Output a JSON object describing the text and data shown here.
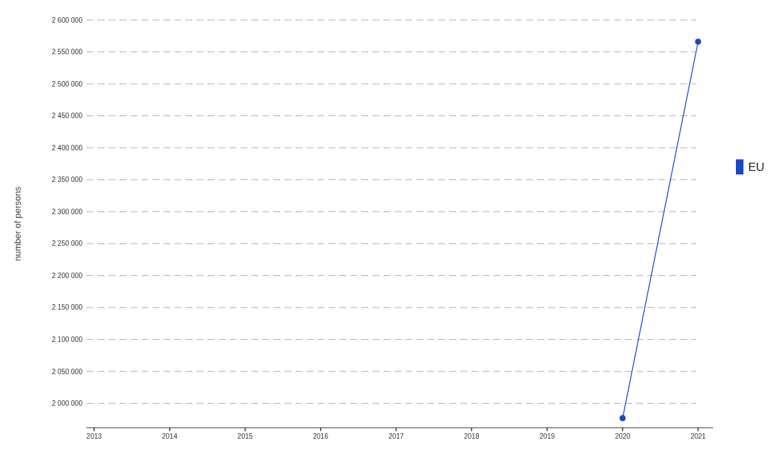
{
  "chart_data": {
    "type": "line",
    "ylabel": "number of persons",
    "x": [
      2020,
      2021
    ],
    "series": [
      {
        "name": "EU",
        "color": "#1a47c8",
        "values": [
          1977000,
          2566000
        ]
      }
    ],
    "xlim": [
      2012.9,
      2021.2
    ],
    "xticks": [
      2013,
      2014,
      2015,
      2016,
      2017,
      2018,
      2019,
      2020,
      2021
    ],
    "ylim": [
      1962000,
      2600000
    ],
    "yticks": [
      {
        "value": 2000000,
        "label": "2 000 000"
      },
      {
        "value": 2050000,
        "label": "2 050 000"
      },
      {
        "value": 2100000,
        "label": "2 100 000"
      },
      {
        "value": 2150000,
        "label": "2 150 000"
      },
      {
        "value": 2200000,
        "label": "2 200 000"
      },
      {
        "value": 2250000,
        "label": "2 250 000"
      },
      {
        "value": 2300000,
        "label": "2 300 000"
      },
      {
        "value": 2350000,
        "label": "2 350 000"
      },
      {
        "value": 2400000,
        "label": "2 400 000"
      },
      {
        "value": 2450000,
        "label": "2 450 000"
      },
      {
        "value": 2500000,
        "label": "2 500 000"
      },
      {
        "value": 2550000,
        "label": "2 550 000"
      },
      {
        "value": 2600000,
        "label": "2 600 000"
      }
    ],
    "grid": "y",
    "legend": "right",
    "marker": "circle",
    "line_style": "solid"
  }
}
